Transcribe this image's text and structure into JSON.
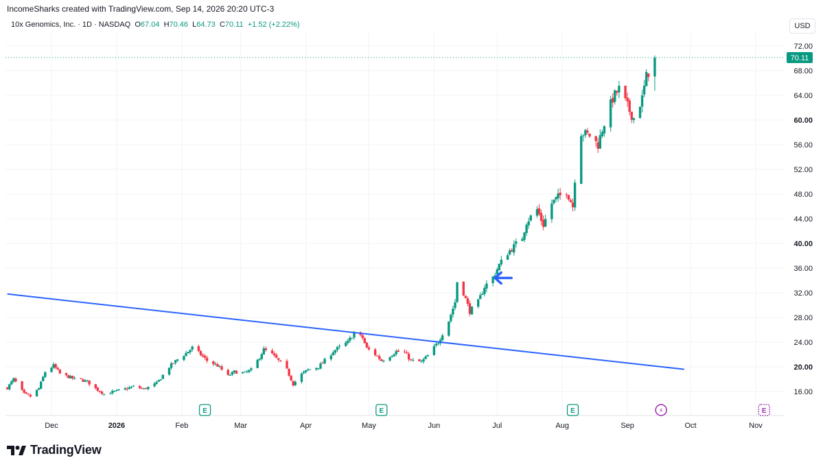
{
  "header": {
    "credit": "IncomeSharks created with TradingView.com, Sep 14, 2026 20:20 UTC-3",
    "symbol": "10x Genomics, Inc. · 1D · NASDAQ",
    "o_label": "O",
    "o_value": "67.04",
    "h_label": "H",
    "h_value": "70.46",
    "l_label": "L",
    "l_value": "64.73",
    "c_label": "C",
    "c_value": "70.11",
    "change": "+1.52 (+2.22%)",
    "currency": "USD"
  },
  "brand": {
    "name": "TradingView"
  },
  "colors": {
    "up": "#089981",
    "down": "#f23645",
    "trendline": "#2962ff",
    "arrow": "#2962ff",
    "grid": "#f0f3fa",
    "earnings": "#089981",
    "dividend": "#9c27b0"
  },
  "chart_data": {
    "type": "candlestick",
    "ylim": [
      12.4,
      74
    ],
    "y_ticks": [
      "16.00",
      "20.00",
      "24.00",
      "28.00",
      "32.00",
      "36.00",
      "40.00",
      "44.00",
      "48.00",
      "52.00",
      "56.00",
      "60.00",
      "64.00",
      "68.00",
      "72.00"
    ],
    "y_ticks_bold": [
      "20.00",
      "40.00",
      "60.00"
    ],
    "last_price": "70.11",
    "x_ticks": [
      {
        "label": "Dec",
        "date": "2025-12-01",
        "bold": false
      },
      {
        "label": "2026",
        "date": "2026-01-01",
        "bold": true
      },
      {
        "label": "Feb",
        "date": "2026-02-01",
        "bold": false
      },
      {
        "label": "Mar",
        "date": "2026-03-01",
        "bold": false
      },
      {
        "label": "Apr",
        "date": "2026-04-01",
        "bold": false
      },
      {
        "label": "May",
        "date": "2026-05-01",
        "bold": false
      },
      {
        "label": "Jun",
        "date": "2026-06-01",
        "bold": false
      },
      {
        "label": "Jul",
        "date": "2026-07-01",
        "bold": false
      },
      {
        "label": "Aug",
        "date": "2026-08-01",
        "bold": false
      },
      {
        "label": "Sep",
        "date": "2026-09-01",
        "bold": false
      },
      {
        "label": "Oct",
        "date": "2026-10-01",
        "bold": false
      },
      {
        "label": "Nov",
        "date": "2026-11-01",
        "bold": false
      }
    ],
    "trendline": {
      "start": {
        "date": "2025-11-10",
        "price": 31.8
      },
      "end": {
        "date": "2026-09-28",
        "price": 19.6
      }
    },
    "annotation_arrow": {
      "date": "2026-06-30",
      "price": 34.4,
      "direction": "left"
    },
    "events": [
      {
        "date": "2026-02-12",
        "kind": "earnings",
        "label": "E"
      },
      {
        "date": "2026-05-07",
        "kind": "earnings",
        "label": "E"
      },
      {
        "date": "2026-08-06",
        "kind": "earnings",
        "label": "E"
      },
      {
        "date": "2026-09-17",
        "kind": "split",
        "label": "⚡"
      },
      {
        "date": "2026-11-05",
        "kind": "future-earnings",
        "label": "E"
      }
    ],
    "waypoints": [
      [
        "2025-11-10",
        16.6
      ],
      [
        "2025-11-13",
        18.0
      ],
      [
        "2025-11-18",
        15.6
      ],
      [
        "2025-11-21",
        15.2
      ],
      [
        "2025-11-25",
        16.5
      ],
      [
        "2025-11-28",
        19.2
      ],
      [
        "2025-12-02",
        20.2
      ],
      [
        "2025-12-05",
        18.9
      ],
      [
        "2025-12-09",
        18.4
      ],
      [
        "2025-12-12",
        18.0
      ],
      [
        "2025-12-15",
        17.9
      ],
      [
        "2025-12-18",
        17.6
      ],
      [
        "2025-12-22",
        16.5
      ],
      [
        "2025-12-26",
        15.6
      ],
      [
        "2025-12-31",
        16.0
      ],
      [
        "2026-01-05",
        16.4
      ],
      [
        "2026-01-09",
        16.8
      ],
      [
        "2026-01-14",
        16.4
      ],
      [
        "2026-01-20",
        17.3
      ],
      [
        "2026-01-26",
        20.0
      ],
      [
        "2026-01-30",
        21.2
      ],
      [
        "2026-02-03",
        22.2
      ],
      [
        "2026-02-06",
        23.1
      ],
      [
        "2026-02-10",
        22.0
      ],
      [
        "2026-02-13",
        21.0
      ],
      [
        "2026-02-18",
        20.2
      ],
      [
        "2026-02-23",
        18.5
      ],
      [
        "2026-02-26",
        19.2
      ],
      [
        "2026-03-03",
        19.0
      ],
      [
        "2026-03-06",
        19.5
      ],
      [
        "2026-03-09",
        21.0
      ],
      [
        "2026-03-12",
        22.8
      ],
      [
        "2026-03-16",
        22.0
      ],
      [
        "2026-03-19",
        21.0
      ],
      [
        "2026-03-23",
        19.5
      ],
      [
        "2026-03-26",
        17.2
      ],
      [
        "2026-03-30",
        18.8
      ],
      [
        "2026-04-02",
        19.5
      ],
      [
        "2026-04-07",
        20.0
      ],
      [
        "2026-04-10",
        21.0
      ],
      [
        "2026-04-14",
        22.5
      ],
      [
        "2026-04-17",
        23.2
      ],
      [
        "2026-04-21",
        24.0
      ],
      [
        "2026-04-24",
        25.5
      ],
      [
        "2026-04-28",
        24.7
      ],
      [
        "2026-04-30",
        23.0
      ],
      [
        "2026-05-04",
        22.0
      ],
      [
        "2026-05-07",
        21.0
      ],
      [
        "2026-05-11",
        21.8
      ],
      [
        "2026-05-14",
        22.5
      ],
      [
        "2026-05-18",
        22.3
      ],
      [
        "2026-05-21",
        21.0
      ],
      [
        "2026-05-26",
        20.8
      ],
      [
        "2026-05-29",
        21.8
      ],
      [
        "2026-06-03",
        24.0
      ],
      [
        "2026-06-08",
        27.5
      ],
      [
        "2026-06-11",
        30.5
      ],
      [
        "2026-06-12",
        33.8
      ],
      [
        "2026-06-15",
        32.0
      ],
      [
        "2026-06-18",
        29.0
      ],
      [
        "2026-06-22",
        30.5
      ],
      [
        "2026-06-25",
        33.0
      ],
      [
        "2026-06-29",
        34.5
      ],
      [
        "2026-07-02",
        36.5
      ],
      [
        "2026-07-06",
        38.5
      ],
      [
        "2026-07-09",
        39.5
      ],
      [
        "2026-07-13",
        41.0
      ],
      [
        "2026-07-15",
        43.5
      ],
      [
        "2026-07-20",
        45.5
      ],
      [
        "2026-07-23",
        43.0
      ],
      [
        "2026-07-27",
        46.5
      ],
      [
        "2026-07-30",
        47.5
      ],
      [
        "2026-08-03",
        48.5
      ],
      [
        "2026-08-06",
        46.0
      ],
      [
        "2026-08-07",
        50.5
      ],
      [
        "2026-08-10",
        58.0
      ],
      [
        "2026-08-14",
        57.5
      ],
      [
        "2026-08-18",
        56.0
      ],
      [
        "2026-08-20",
        58.5
      ],
      [
        "2026-08-25",
        63.5
      ],
      [
        "2026-08-28",
        65.0
      ],
      [
        "2026-09-02",
        61.5
      ],
      [
        "2026-09-04",
        60.3
      ],
      [
        "2026-09-08",
        63.5
      ],
      [
        "2026-09-10",
        67.0
      ],
      [
        "2026-09-14",
        70.1
      ]
    ]
  }
}
